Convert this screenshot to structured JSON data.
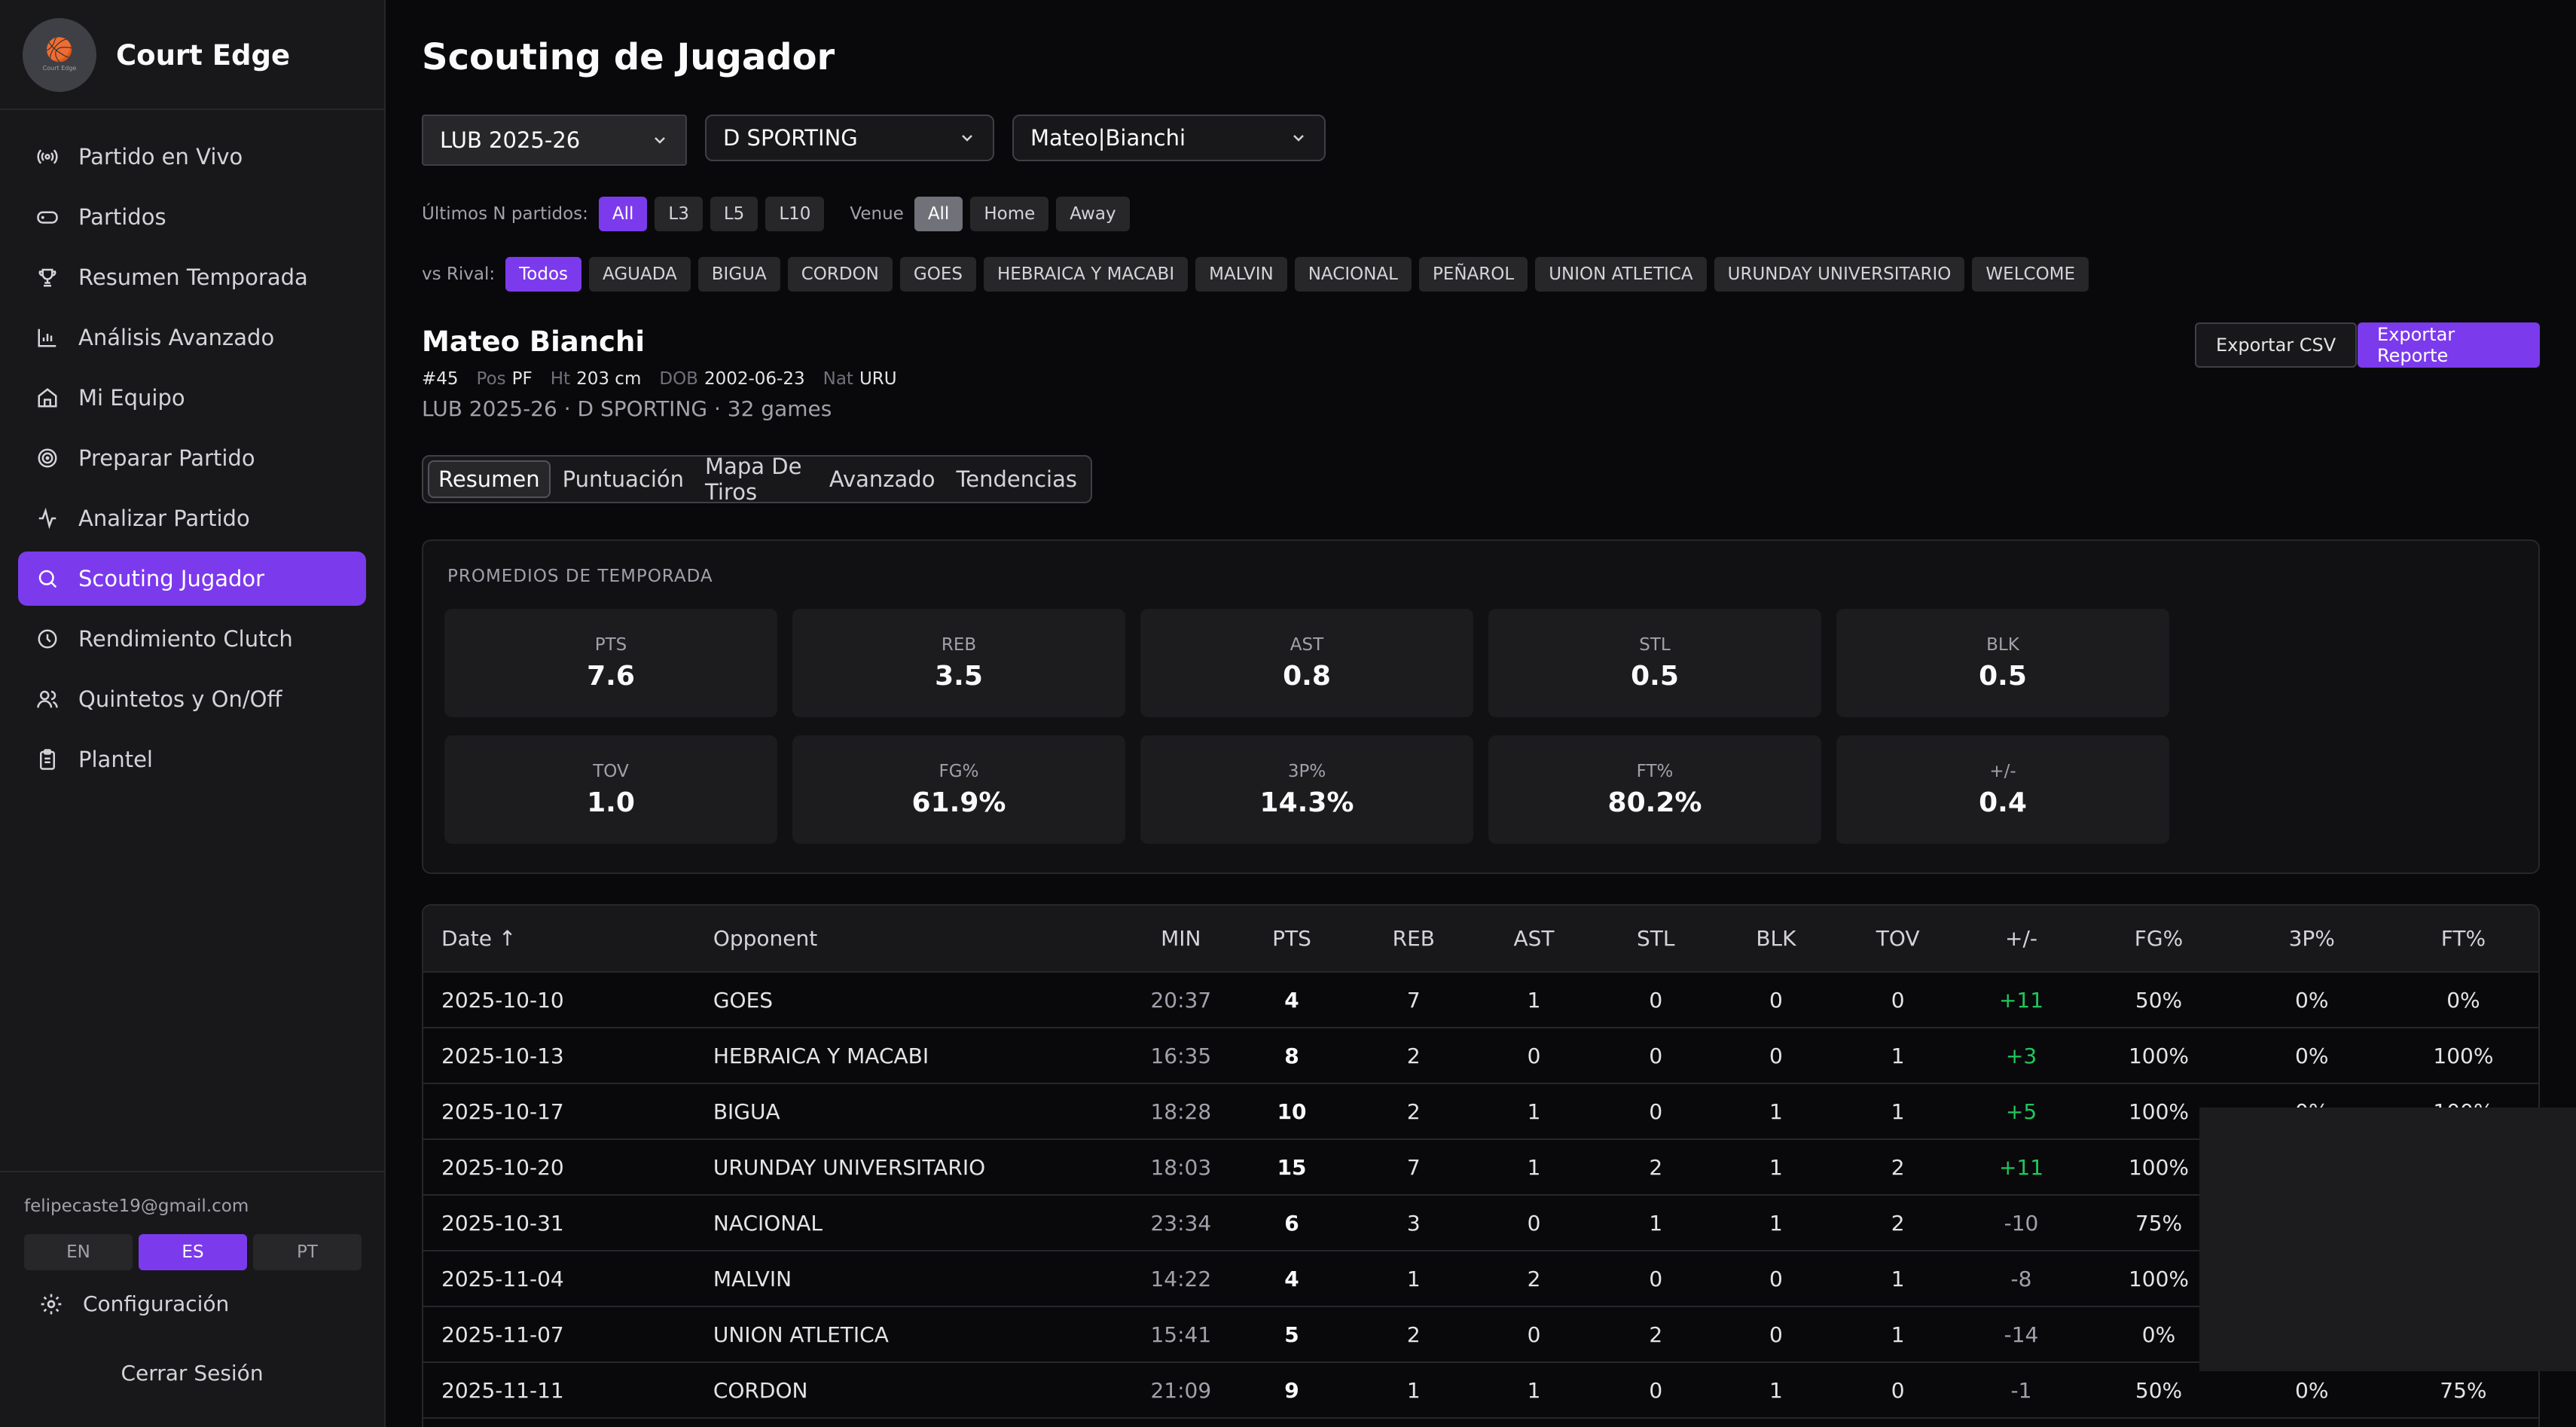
{
  "app": {
    "name": "Court Edge",
    "logo_text": "Court Edge"
  },
  "sidebar": {
    "items": [
      {
        "label": "Partido en Vivo",
        "icon": "broadcast-icon",
        "active": false
      },
      {
        "label": "Partidos",
        "icon": "gamepad-icon",
        "active": false
      },
      {
        "label": "Resumen Temporada",
        "icon": "trophy-icon",
        "active": false
      },
      {
        "label": "Análisis Avanzado",
        "icon": "bar-chart-icon",
        "active": false
      },
      {
        "label": "Mi Equipo",
        "icon": "home-icon",
        "active": false
      },
      {
        "label": "Preparar Partido",
        "icon": "target-icon",
        "active": false
      },
      {
        "label": "Analizar Partido",
        "icon": "activity-icon",
        "active": false
      },
      {
        "label": "Scouting Jugador",
        "icon": "search-icon",
        "active": true
      },
      {
        "label": "Rendimiento Clutch",
        "icon": "clock-icon",
        "active": false
      },
      {
        "label": "Quintetos y On/Off",
        "icon": "users-icon",
        "active": false
      },
      {
        "label": "Plantel",
        "icon": "clipboard-icon",
        "active": false
      }
    ],
    "email": "felipecaste19@gmail.com",
    "languages": [
      "EN",
      "ES",
      "PT"
    ],
    "active_language": "ES",
    "config_label": "Configuración",
    "logout_label": "Cerrar Sesión"
  },
  "page": {
    "title": "Scouting de Jugador",
    "selects": {
      "season": "LUB 2025-26",
      "team": "D SPORTING",
      "player": "Mateo|Bianchi"
    },
    "last_n": {
      "label": "Últimos N partidos:",
      "options": [
        "All",
        "L3",
        "L5",
        "L10"
      ],
      "selected": "All"
    },
    "venue": {
      "label": "Venue",
      "options": [
        "All",
        "Home",
        "Away"
      ],
      "selected": "All"
    },
    "rival": {
      "label": "vs Rival:",
      "options": [
        "Todos",
        "AGUADA",
        "BIGUA",
        "CORDON",
        "GOES",
        "HEBRAICA Y MACABI",
        "MALVIN",
        "NACIONAL",
        "PEÑAROL",
        "UNION ATLETICA",
        "URUNDAY UNIVERSITARIO",
        "WELCOME"
      ],
      "selected": "Todos"
    }
  },
  "player": {
    "name": "Mateo Bianchi",
    "number": "#45",
    "pos_label": "Pos",
    "pos": "PF",
    "ht_label": "Ht",
    "ht": "203 cm",
    "dob_label": "DOB",
    "dob": "2002-06-23",
    "nat_label": "Nat",
    "nat": "URU",
    "subtitle": "LUB 2025-26 · D SPORTING · 32 games"
  },
  "actions": {
    "export_csv": "Exportar CSV",
    "export_report": "Exportar Reporte"
  },
  "tabs": [
    "Resumen",
    "Puntuación",
    "Mapa De Tiros",
    "Avanzado",
    "Tendencias"
  ],
  "active_tab": "Resumen",
  "season_averages": {
    "title": "PROMEDIOS DE TEMPORADA",
    "stats": [
      {
        "label": "PTS",
        "value": "7.6"
      },
      {
        "label": "REB",
        "value": "3.5"
      },
      {
        "label": "AST",
        "value": "0.8"
      },
      {
        "label": "STL",
        "value": "0.5"
      },
      {
        "label": "BLK",
        "value": "0.5"
      },
      {
        "label": "TOV",
        "value": "1.0"
      },
      {
        "label": "FG%",
        "value": "61.9%"
      },
      {
        "label": "3P%",
        "value": "14.3%"
      },
      {
        "label": "FT%",
        "value": "80.2%"
      },
      {
        "label": "+/-",
        "value": "0.4"
      }
    ]
  },
  "games_table": {
    "columns": [
      "Date ↑",
      "Opponent",
      "MIN",
      "PTS",
      "REB",
      "AST",
      "STL",
      "BLK",
      "TOV",
      "+/-",
      "FG%",
      "3P%",
      "FT%"
    ],
    "rows": [
      [
        "2025-10-10",
        "GOES",
        "20:37",
        "4",
        "7",
        "1",
        "0",
        "0",
        "0",
        "+11",
        "50%",
        "0%",
        "0%"
      ],
      [
        "2025-10-13",
        "HEBRAICA Y MACABI",
        "16:35",
        "8",
        "2",
        "0",
        "0",
        "0",
        "1",
        "+3",
        "100%",
        "0%",
        "100%"
      ],
      [
        "2025-10-17",
        "BIGUA",
        "18:28",
        "10",
        "2",
        "1",
        "0",
        "1",
        "1",
        "+5",
        "100%",
        "0%",
        "100%"
      ],
      [
        "2025-10-20",
        "URUNDAY UNIVERSITARIO",
        "18:03",
        "15",
        "7",
        "1",
        "2",
        "1",
        "2",
        "+11",
        "100%",
        "",
        ""
      ],
      [
        "2025-10-31",
        "NACIONAL",
        "23:34",
        "6",
        "3",
        "0",
        "1",
        "1",
        "2",
        "-10",
        "75%",
        "",
        ""
      ],
      [
        "2025-11-04",
        "MALVIN",
        "14:22",
        "4",
        "1",
        "2",
        "0",
        "0",
        "1",
        "-8",
        "100%",
        "",
        ""
      ],
      [
        "2025-11-07",
        "UNION ATLETICA",
        "15:41",
        "5",
        "2",
        "0",
        "2",
        "0",
        "1",
        "-14",
        "0%",
        "",
        ""
      ],
      [
        "2025-11-11",
        "CORDON",
        "21:09",
        "9",
        "1",
        "1",
        "0",
        "1",
        "0",
        "-1",
        "50%",
        "0%",
        "75%"
      ],
      [
        "",
        "",
        "",
        "",
        "",
        "",
        "",
        "",
        "",
        "",
        "",
        "",
        ""
      ]
    ]
  },
  "colors": {
    "accent": "#7c3aed",
    "positive": "#22c55e",
    "background": "#09090b",
    "sidebar": "#18181b"
  }
}
